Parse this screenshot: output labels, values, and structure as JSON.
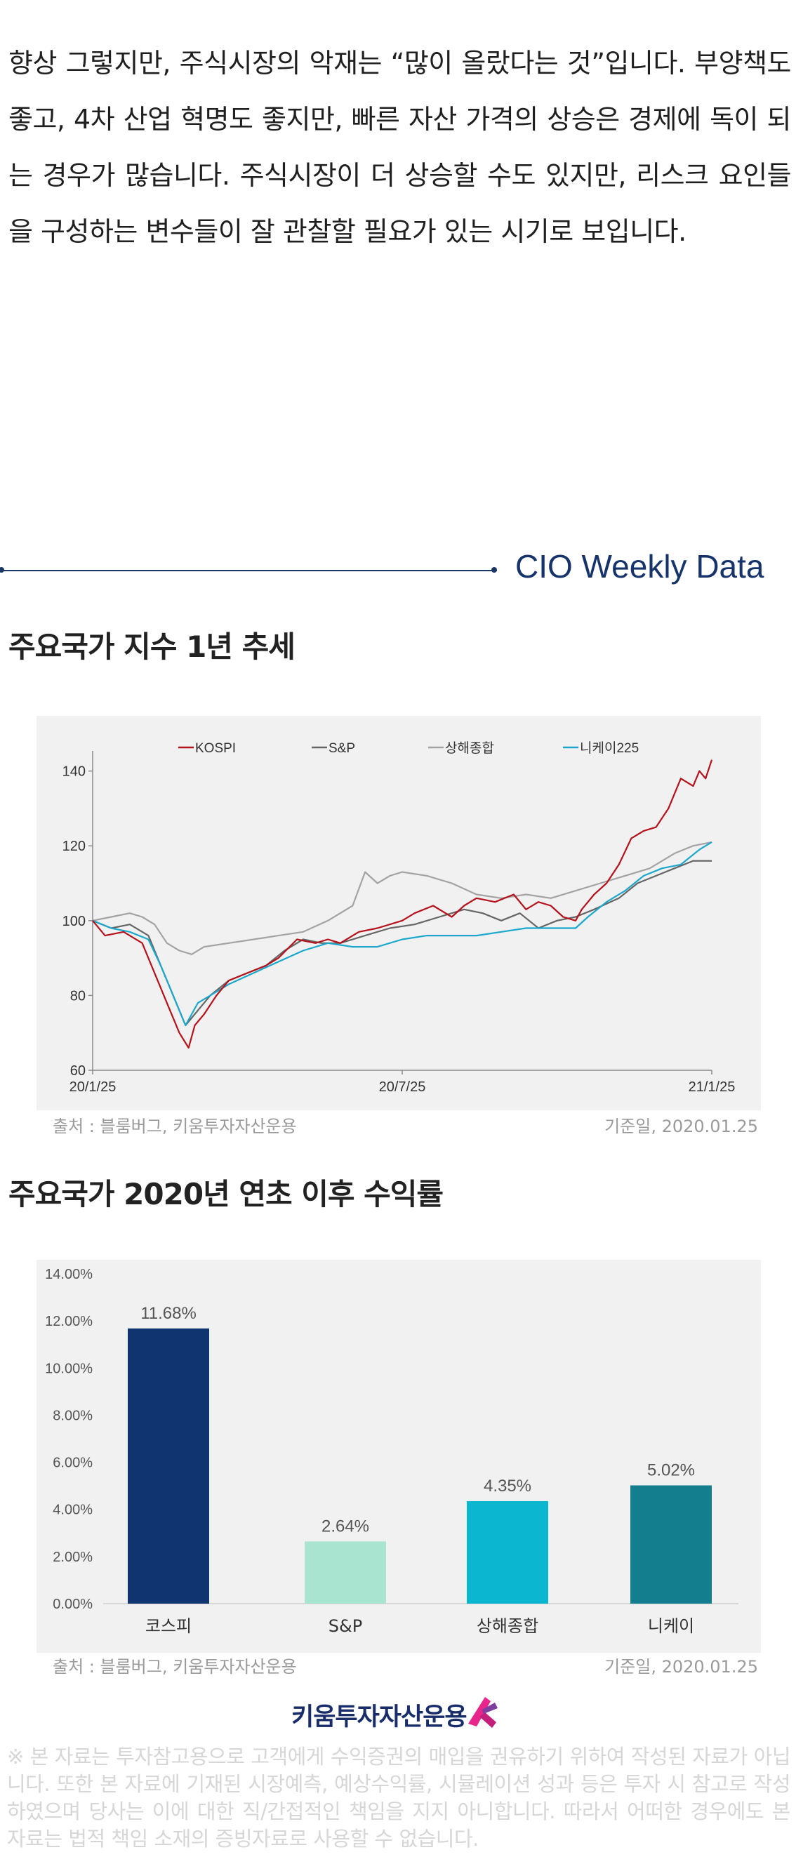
{
  "intro": {
    "paragraph": " 향상 그렇지만, 주식시장의 악재는 “많이 올랐다는 것”입니다. 부양책도 좋고, 4차 산업 혁명도 좋지만, 빠른 자산 가격의 상승은 경제에 독이 되는 경우가 많습니다. 주식시장이 더 상승할 수도 있지만, 리스크 요인들을 구성하는 변수들이 잘 관찰할 필요가 있는 시기로 보입니다."
  },
  "section": {
    "title": "CIO Weekly Data"
  },
  "chart1": {
    "heading": "주요국가 지수 1년 추세",
    "source": "출처 : 블룸버그, 키움투자자산운용",
    "base_date": "기준일, 2020.01.25"
  },
  "chart2": {
    "heading": "주요국가 2020년 연초 이후 수익률",
    "source": "출처 : 블룸버그, 키움투자자산운용",
    "base_date": "기준일, 2020.01.25"
  },
  "footer": {
    "logo_text": "키움투자자산운용",
    "disclaimer": "※ 본 자료는 투자참고용으로 고객에게 수익증권의 매입을 권유하기 위하여 작성된 자료가 아닙니다. 또한 본 자료에 기재된 시장예측, 예상수익률, 시뮬레이션 성과 등은 투자 시 참고로 작성하였으며 당사는 이에 대한 직/간접적인 책임을 지지 아니합니다. 따라서 어떠한 경우에도 본 자료는 법적 책임 소재의 증빙자료로 사용할 수 없습니다."
  },
  "colors": {
    "kospi": "#b5121b",
    "sp": "#666666",
    "shanghai": "#a3a3a3",
    "nikkei": "#1ba8cc",
    "bar_kospi": "#0f3470",
    "bar_sp": "#a8e4d0",
    "bar_shanghai": "#0bb7d0",
    "bar_nikkei": "#127e8e"
  },
  "chart_data": [
    {
      "type": "line",
      "x_ticks": [
        "20/1/25",
        "20/7/25",
        "21/1/25"
      ],
      "ylim": [
        60,
        145
      ],
      "y_ticks": [
        60,
        80,
        100,
        120,
        140
      ],
      "legend_position": "top",
      "series": [
        {
          "name": "KOSPI",
          "color": "#b5121b",
          "x": [
            0,
            0.02,
            0.05,
            0.08,
            0.1,
            0.12,
            0.14,
            0.155,
            0.165,
            0.18,
            0.2,
            0.22,
            0.25,
            0.28,
            0.3,
            0.33,
            0.36,
            0.38,
            0.4,
            0.43,
            0.46,
            0.5,
            0.52,
            0.55,
            0.58,
            0.6,
            0.62,
            0.65,
            0.68,
            0.7,
            0.72,
            0.74,
            0.76,
            0.78,
            0.79,
            0.81,
            0.83,
            0.85,
            0.87,
            0.89,
            0.91,
            0.93,
            0.95,
            0.97,
            0.98,
            0.99,
            1.0
          ],
          "y": [
            100,
            96,
            97,
            94,
            86,
            78,
            70,
            66,
            72,
            75,
            80,
            84,
            86,
            88,
            90,
            95,
            94,
            95,
            94,
            97,
            98,
            100,
            102,
            104,
            101,
            104,
            106,
            105,
            107,
            103,
            105,
            104,
            101,
            100,
            103,
            107,
            110,
            115,
            122,
            124,
            125,
            130,
            138,
            136,
            140,
            138,
            143
          ]
        },
        {
          "name": "S&P",
          "color": "#666666",
          "x": [
            0,
            0.03,
            0.06,
            0.09,
            0.11,
            0.13,
            0.15,
            0.17,
            0.19,
            0.22,
            0.25,
            0.28,
            0.31,
            0.34,
            0.37,
            0.4,
            0.44,
            0.48,
            0.52,
            0.56,
            0.6,
            0.63,
            0.66,
            0.69,
            0.72,
            0.75,
            0.78,
            0.81,
            0.85,
            0.88,
            0.91,
            0.94,
            0.97,
            1.0
          ],
          "y": [
            100,
            98,
            99,
            96,
            88,
            80,
            72,
            76,
            80,
            84,
            86,
            88,
            92,
            95,
            94,
            94,
            96,
            98,
            99,
            101,
            103,
            102,
            100,
            102,
            98,
            100,
            101,
            103,
            106,
            110,
            112,
            114,
            116,
            116
          ]
        },
        {
          "name": "상해종합",
          "color": "#a3a3a3",
          "x": [
            0,
            0.03,
            0.06,
            0.08,
            0.1,
            0.12,
            0.14,
            0.16,
            0.18,
            0.22,
            0.26,
            0.3,
            0.34,
            0.38,
            0.42,
            0.44,
            0.46,
            0.48,
            0.5,
            0.54,
            0.58,
            0.62,
            0.66,
            0.7,
            0.74,
            0.78,
            0.82,
            0.86,
            0.9,
            0.94,
            0.97,
            1.0
          ],
          "y": [
            100,
            101,
            102,
            101,
            99,
            94,
            92,
            91,
            93,
            94,
            95,
            96,
            97,
            100,
            104,
            113,
            110,
            112,
            113,
            112,
            110,
            107,
            106,
            107,
            106,
            108,
            110,
            112,
            114,
            118,
            120,
            121
          ]
        },
        {
          "name": "니케이225",
          "color": "#1ba8cc",
          "x": [
            0,
            0.03,
            0.06,
            0.09,
            0.11,
            0.13,
            0.15,
            0.17,
            0.19,
            0.22,
            0.26,
            0.3,
            0.34,
            0.38,
            0.42,
            0.46,
            0.5,
            0.54,
            0.58,
            0.62,
            0.66,
            0.7,
            0.74,
            0.78,
            0.8,
            0.83,
            0.86,
            0.89,
            0.92,
            0.95,
            0.98,
            1.0
          ],
          "y": [
            100,
            98,
            97,
            95,
            88,
            80,
            72,
            78,
            80,
            83,
            86,
            89,
            92,
            94,
            93,
            93,
            95,
            96,
            96,
            96,
            97,
            98,
            98,
            98,
            101,
            105,
            108,
            112,
            114,
            115,
            119,
            121
          ]
        }
      ]
    },
    {
      "type": "bar",
      "categories": [
        "코스피",
        "S&P",
        "상해종합",
        "니케이"
      ],
      "values": [
        11.68,
        2.64,
        4.35,
        5.02
      ],
      "labels": [
        "11.68%",
        "2.64%",
        "4.35%",
        "5.02%"
      ],
      "colors": [
        "#0f3470",
        "#a8e4d0",
        "#0bb7d0",
        "#127e8e"
      ],
      "ylim": [
        0,
        14
      ],
      "y_ticks": [
        "0.00%",
        "2.00%",
        "4.00%",
        "6.00%",
        "8.00%",
        "10.00%",
        "12.00%",
        "14.00%"
      ]
    }
  ]
}
